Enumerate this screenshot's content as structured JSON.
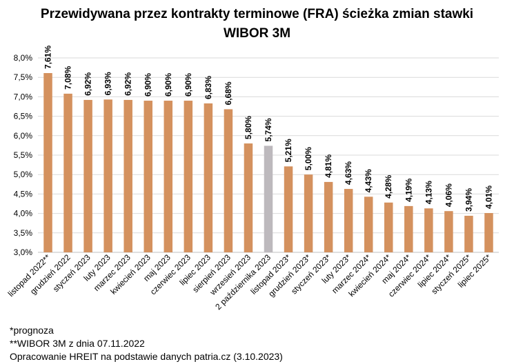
{
  "chart_data": {
    "type": "bar",
    "title_line1": "Przewidywana przez kontrakty terminowe (FRA) ścieżka zmian stawki",
    "title_line2": "WIBOR 3M",
    "xlabel": "",
    "ylabel": "",
    "ylim": [
      3.0,
      8.0
    ],
    "yticks": [
      "3,0%",
      "3,5%",
      "4,0%",
      "4,5%",
      "5,0%",
      "5,5%",
      "6,0%",
      "6,5%",
      "7,0%",
      "7,5%",
      "8,0%"
    ],
    "grid": true,
    "categories": [
      "listopad 2022**",
      "grudzień 2022",
      "styczeń 2023",
      "luty 2023",
      "marzec 2023",
      "kwiecień 2023",
      "maj 2023",
      "czerwiec 2023",
      "lipiec 2023",
      "sierpień 2023",
      "wrzesień 2023",
      "2 października 2023",
      "listopad 2023*",
      "grudzień 2023*",
      "styczeń 2023*",
      "luty 2023*",
      "marzec 2024*",
      "kwiecień 2024*",
      "maj 2024*",
      "czerwiec 2024*",
      "lipiec 2024*",
      "styczeń 2025*",
      "lipiec 2025*"
    ],
    "values": [
      7.61,
      7.08,
      6.92,
      6.93,
      6.92,
      6.9,
      6.9,
      6.9,
      6.83,
      6.68,
      5.8,
      5.74,
      5.21,
      5.0,
      4.81,
      4.63,
      4.43,
      4.28,
      4.19,
      4.13,
      4.06,
      3.94,
      4.01
    ],
    "labels": [
      "7,61%",
      "7,08%",
      "6,92%",
      "6,93%",
      "6,92%",
      "6,90%",
      "6,90%",
      "6,90%",
      "6,83%",
      "6,68%",
      "5,80%",
      "5,74%",
      "5,21%",
      "5,00%",
      "4,81%",
      "4,63%",
      "4,43%",
      "4,28%",
      "4,19%",
      "4,13%",
      "4,06%",
      "3,94%",
      "4,01%"
    ],
    "highlight_index": 11,
    "colors": {
      "bar": "#D4915E",
      "highlight": "#BDB9BD",
      "grid": "#D9D9D9",
      "axis": "#BFBFBF"
    }
  },
  "footnotes": {
    "forecast": "*prognoza",
    "wibor": "**WIBOR 3M z dnia 07.11.2022",
    "source": "Opracowanie HREIT na podstawie danych patria.cz (3.10.2023)"
  }
}
